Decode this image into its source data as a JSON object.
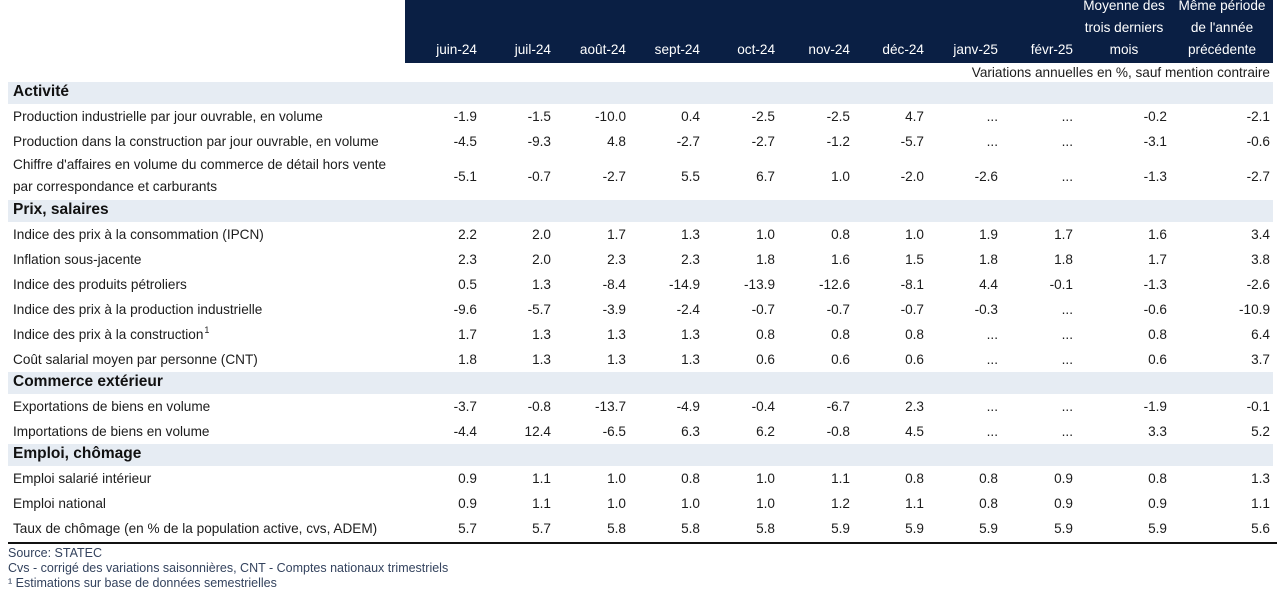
{
  "colors": {
    "header_background": "#0a1f44",
    "header_text": "#ffffff",
    "section_background": "#e6ecf3",
    "text": "#1c1c1c",
    "footnote_text": "#34435e",
    "rule": "#111111"
  },
  "chart_data": {
    "type": "table",
    "columns": [
      "juin-24",
      "juil-24",
      "août-24",
      "sept-24",
      "oct-24",
      "nov-24",
      "déc-24",
      "janv-25",
      "févr-25",
      "Moyenne des trois derniers mois",
      "Même période de l'année précédente"
    ],
    "subtitle": "Variations annuelles en %, sauf mention contraire",
    "sections": [
      {
        "title": "Activité",
        "rows": [
          {
            "label_lines": [
              "Production industrielle par jour ouvrable, en volume"
            ],
            "values": [
              "-1.9",
              "-1.5",
              "-10.0",
              "0.4",
              "-2.5",
              "-2.5",
              "4.7",
              "...",
              "...",
              "-0.2",
              "-2.1"
            ]
          },
          {
            "label_lines": [
              "Production dans la construction par jour ouvrable, en volume"
            ],
            "values": [
              "-4.5",
              "-9.3",
              "4.8",
              "-2.7",
              "-2.7",
              "-1.2",
              "-5.7",
              "...",
              "...",
              "-3.1",
              "-0.6"
            ]
          },
          {
            "label_lines": [
              "Chiffre d'affaires en volume du commerce de détail hors vente",
              "par correspondance et carburants"
            ],
            "values": [
              "-5.1",
              "-0.7",
              "-2.7",
              "5.5",
              "6.7",
              "1.0",
              "-2.0",
              "-2.6",
              "...",
              "-1.3",
              "-2.7"
            ]
          }
        ]
      },
      {
        "title": "Prix, salaires",
        "rows": [
          {
            "label_lines": [
              "Indice des prix à la consommation (IPCN)"
            ],
            "values": [
              "2.2",
              "2.0",
              "1.7",
              "1.3",
              "1.0",
              "0.8",
              "1.0",
              "1.9",
              "1.7",
              "1.6",
              "3.4"
            ]
          },
          {
            "label_lines": [
              "Inflation sous-jacente"
            ],
            "values": [
              "2.3",
              "2.0",
              "2.3",
              "2.3",
              "1.8",
              "1.6",
              "1.5",
              "1.8",
              "1.8",
              "1.7",
              "3.8"
            ]
          },
          {
            "label_lines": [
              "Indice des produits pétroliers"
            ],
            "values": [
              "0.5",
              "1.3",
              "-8.4",
              "-14.9",
              "-13.9",
              "-12.6",
              "-8.1",
              "4.4",
              "-0.1",
              "-1.3",
              "-2.6"
            ]
          },
          {
            "label_lines": [
              "Indice des prix à la production industrielle"
            ],
            "values": [
              "-9.6",
              "-5.7",
              "-3.9",
              "-2.4",
              "-0.7",
              "-0.7",
              "-0.7",
              "-0.3",
              "...",
              "-0.6",
              "-10.9"
            ]
          },
          {
            "label_lines": [
              "Indice des prix à la construction"
            ],
            "note": "1",
            "values": [
              "1.7",
              "1.3",
              "1.3",
              "1.3",
              "0.8",
              "0.8",
              "0.8",
              "...",
              "...",
              "0.8",
              "6.4"
            ]
          },
          {
            "label_lines": [
              "Coût salarial moyen par personne (CNT)"
            ],
            "values": [
              "1.8",
              "1.3",
              "1.3",
              "1.3",
              "0.6",
              "0.6",
              "0.6",
              "...",
              "...",
              "0.6",
              "3.7"
            ]
          }
        ]
      },
      {
        "title": "Commerce extérieur",
        "rows": [
          {
            "label_lines": [
              "Exportations de biens en volume"
            ],
            "values": [
              "-3.7",
              "-0.8",
              "-13.7",
              "-4.9",
              "-0.4",
              "-6.7",
              "2.3",
              "...",
              "...",
              "-1.9",
              "-0.1"
            ]
          },
          {
            "label_lines": [
              "Importations de biens en volume"
            ],
            "values": [
              "-4.4",
              "12.4",
              "-6.5",
              "6.3",
              "6.2",
              "-0.8",
              "4.5",
              "...",
              "...",
              "3.3",
              "5.2"
            ]
          }
        ]
      },
      {
        "title": "Emploi, chômage",
        "rows": [
          {
            "label_lines": [
              "Emploi salarié intérieur"
            ],
            "values": [
              "0.9",
              "1.1",
              "1.0",
              "0.8",
              "1.0",
              "1.1",
              "0.8",
              "0.8",
              "0.9",
              "0.8",
              "1.3"
            ]
          },
          {
            "label_lines": [
              "Emploi national"
            ],
            "values": [
              "0.9",
              "1.1",
              "1.0",
              "1.0",
              "1.0",
              "1.2",
              "1.1",
              "0.8",
              "0.9",
              "0.9",
              "1.1"
            ]
          },
          {
            "label_lines": [
              "Taux de chômage (en % de la population active, cvs, ADEM)"
            ],
            "values": [
              "5.7",
              "5.7",
              "5.8",
              "5.8",
              "5.8",
              "5.9",
              "5.9",
              "5.9",
              "5.9",
              "5.9",
              "5.6"
            ]
          }
        ]
      }
    ],
    "footnotes": [
      "Source: STATEC",
      "Cvs - corrigé des variations saisonnières, CNT - Comptes nationaux trimestriels",
      "¹ Estimations sur base de données semestrielles"
    ]
  }
}
